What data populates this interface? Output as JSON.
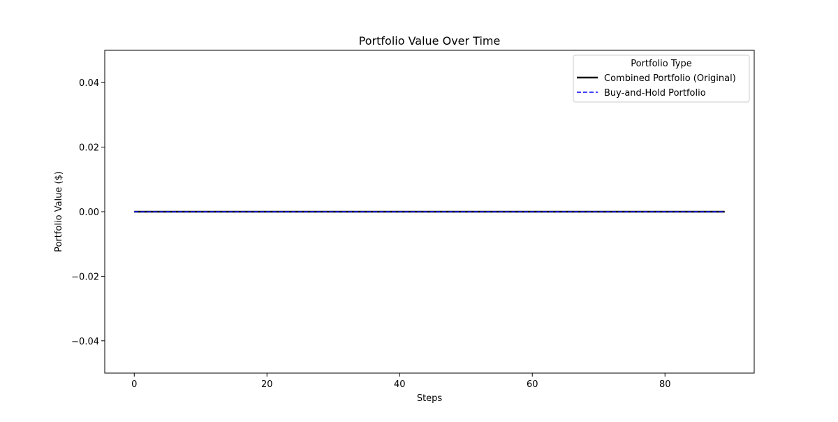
{
  "chart_data": {
    "type": "line",
    "title": "Portfolio Value Over Time",
    "xlabel": "Steps",
    "ylabel": "Portfolio Value ($)",
    "xlim": [
      -4.45,
      93.45
    ],
    "ylim": [
      -0.05,
      0.05
    ],
    "xticks": [
      0,
      20,
      40,
      60,
      80
    ],
    "xtick_labels": [
      "0",
      "20",
      "40",
      "60",
      "80"
    ],
    "yticks": [
      -0.04,
      -0.02,
      0.0,
      0.02,
      0.04
    ],
    "ytick_labels": [
      "−0.04",
      "−0.02",
      "0.00",
      "0.02",
      "0.04"
    ],
    "grid": false,
    "legend": {
      "title": "Portfolio Type",
      "placement": "top-right"
    },
    "x_range": [
      0,
      89
    ],
    "series": [
      {
        "name": "Combined Portfolio (Original)",
        "color": "#000000",
        "style": "solid",
        "constant_value": 0.0
      },
      {
        "name": "Buy-and-Hold Portfolio",
        "color": "#0000ff",
        "style": "dashed",
        "constant_value": 0.0
      }
    ]
  }
}
